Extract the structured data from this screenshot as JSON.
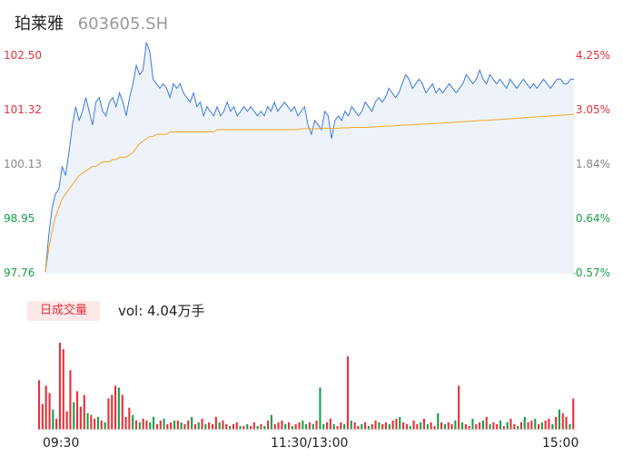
{
  "header": {
    "name": "珀莱雅",
    "code": "603605.SH"
  },
  "chart_data": {
    "type": "line",
    "price_axis": [
      "102.50",
      "101.32",
      "100.13",
      "98.95",
      "97.76"
    ],
    "pct_axis": [
      "4.25%",
      "3.05%",
      "1.84%",
      "0.64%",
      "-0.57%"
    ],
    "ylim": [
      97.76,
      102.5
    ],
    "x_ticks": [
      "09:30",
      "11:30/13:00",
      "15:00"
    ],
    "colors": {
      "price": "#3a7be0",
      "avg": "#f5a623",
      "up": "#e8303a",
      "down": "#15a04a"
    },
    "series": [
      {
        "values": [
          97.8,
          98.6,
          99.2,
          99.5,
          99.6,
          100.1,
          99.9,
          100.4,
          101.0,
          101.4,
          101.1,
          101.3,
          101.6,
          101.3,
          101.0,
          101.5,
          101.6,
          101.3,
          101.2,
          101.5,
          101.6,
          101.4,
          101.7,
          101.5,
          101.2,
          101.6,
          101.9,
          102.3,
          102.1,
          102.2,
          102.8,
          102.6,
          102.0,
          101.9,
          101.8,
          101.9,
          101.8,
          101.6,
          101.9,
          101.8,
          101.9,
          101.7,
          101.6,
          101.5,
          101.7,
          101.4,
          101.5,
          101.2,
          101.4,
          101.3,
          101.2,
          101.4,
          101.2,
          101.3,
          101.5,
          101.3,
          101.4,
          101.2,
          101.3,
          101.4,
          101.3,
          101.4,
          101.3,
          101.2,
          101.3,
          101.2,
          101.4,
          101.3,
          101.5,
          101.3,
          101.4,
          101.5,
          101.4,
          101.3,
          101.4,
          101.2,
          101.3,
          101.4,
          101.0,
          100.8,
          101.1,
          101.0,
          100.9,
          101.3,
          101.2,
          100.7,
          101.1,
          101.2,
          101.1,
          101.3,
          101.2,
          101.4,
          101.3,
          101.2,
          101.3,
          101.5,
          101.4,
          101.3,
          101.5,
          101.6,
          101.5,
          101.6,
          101.8,
          101.7,
          101.6,
          101.7,
          101.9,
          102.1,
          102.0,
          101.8,
          101.9,
          102.0,
          101.9,
          101.7,
          101.8,
          101.9,
          101.7,
          101.8,
          101.7,
          101.8,
          101.9,
          101.8,
          101.7,
          101.8,
          101.9,
          102.1,
          102.0,
          101.9,
          102.0,
          102.2,
          102.0,
          101.9,
          102.1,
          102.0,
          101.9,
          102.0,
          101.9,
          101.8,
          102.0,
          101.9,
          101.8,
          101.9,
          102.0,
          101.9,
          101.8,
          101.9,
          101.8,
          101.9,
          102.0,
          101.9,
          101.8,
          101.9,
          102.0,
          102.0,
          101.9,
          101.9,
          102.0,
          102.0
        ]
      },
      {
        "values": [
          97.8,
          98.3,
          98.7,
          99.0,
          99.2,
          99.4,
          99.5,
          99.6,
          99.7,
          99.8,
          99.9,
          99.95,
          100.0,
          100.05,
          100.1,
          100.1,
          100.15,
          100.2,
          100.2,
          100.2,
          100.25,
          100.25,
          100.3,
          100.3,
          100.3,
          100.35,
          100.4,
          100.5,
          100.6,
          100.65,
          100.7,
          100.75,
          100.75,
          100.8,
          100.8,
          100.8,
          100.8,
          100.85,
          100.85,
          100.85,
          100.85,
          100.85,
          100.85,
          100.85,
          100.85,
          100.85,
          100.85,
          100.85,
          100.85,
          100.85,
          100.85,
          100.9,
          100.9,
          100.9,
          100.9,
          100.9,
          100.9,
          100.9,
          100.9,
          100.9,
          100.9,
          100.9,
          100.9,
          100.9,
          100.9,
          100.9,
          100.9,
          100.9,
          100.9,
          100.9,
          100.9,
          100.9,
          100.9,
          100.9,
          100.9,
          100.9,
          100.92,
          100.92,
          100.92,
          100.92,
          100.92,
          100.92,
          100.92,
          100.93,
          100.93,
          100.93,
          100.93,
          100.93,
          100.94,
          100.94,
          100.94,
          100.95,
          100.95,
          100.95,
          100.95,
          100.95,
          100.95,
          100.96,
          100.96,
          100.97,
          100.97,
          100.98,
          100.98,
          100.98,
          100.99,
          100.99,
          101.0,
          101.0,
          101.0,
          101.01,
          101.01,
          101.02,
          101.02,
          101.02,
          101.03,
          101.03,
          101.03,
          101.04,
          101.04,
          101.05,
          101.05,
          101.06,
          101.06,
          101.07,
          101.07,
          101.08,
          101.08,
          101.09,
          101.09,
          101.1,
          101.1,
          101.1,
          101.11,
          101.11,
          101.12,
          101.12,
          101.13,
          101.13,
          101.14,
          101.14,
          101.15,
          101.15,
          101.16,
          101.16,
          101.17,
          101.17,
          101.18,
          101.18,
          101.19,
          101.19,
          101.2,
          101.2,
          101.21,
          101.21,
          101.22,
          101.22,
          101.23,
          101.24
        ]
      }
    ],
    "volume": {
      "label": "日成交量",
      "summary": "vol: 4.04万手",
      "bars": [
        54,
        28,
        48,
        40,
        22,
        12,
        95,
        88,
        20,
        65,
        30,
        42,
        25,
        38,
        18,
        16,
        12,
        14,
        10,
        8,
        34,
        38,
        48,
        46,
        38,
        14,
        24,
        16,
        10,
        8,
        12,
        10,
        8,
        14,
        6,
        10,
        12,
        6,
        8,
        10,
        10,
        8,
        6,
        10,
        14,
        6,
        8,
        12,
        6,
        8,
        6,
        14,
        8,
        10,
        6,
        4,
        6,
        8,
        4,
        4,
        6,
        4,
        8,
        4,
        6,
        4,
        10,
        16,
        6,
        8,
        10,
        6,
        8,
        4,
        6,
        8,
        10,
        6,
        8,
        6,
        10,
        46,
        6,
        8,
        12,
        6,
        4,
        8,
        6,
        80,
        10,
        8,
        4,
        6,
        8,
        4,
        6,
        10,
        8,
        6,
        8,
        6,
        10,
        12,
        14,
        8,
        6,
        4,
        10,
        6,
        8,
        12,
        6,
        8,
        4,
        18,
        8,
        6,
        8,
        6,
        10,
        48,
        8,
        6,
        4,
        12,
        6,
        8,
        10,
        14,
        6,
        8,
        6,
        10,
        4,
        8,
        12,
        6,
        4,
        8,
        14,
        8,
        10,
        12,
        6,
        8,
        10,
        12,
        6,
        14,
        22,
        18,
        14,
        6,
        34
      ],
      "directions": [
        "u",
        "u",
        "u",
        "u",
        "d",
        "u",
        "u",
        "u",
        "u",
        "u",
        "d",
        "u",
        "u",
        "u",
        "d",
        "u",
        "u",
        "d",
        "u",
        "d",
        "u",
        "u",
        "u",
        "d",
        "u",
        "u",
        "u",
        "d",
        "u",
        "d",
        "u",
        "u",
        "d",
        "d",
        "u",
        "u",
        "d",
        "u",
        "u",
        "d",
        "u",
        "d",
        "u",
        "u",
        "d",
        "u",
        "d",
        "u",
        "d",
        "u",
        "u",
        "u",
        "d",
        "u",
        "u",
        "d",
        "u",
        "u",
        "d",
        "u",
        "d",
        "u",
        "u",
        "d",
        "u",
        "d",
        "u",
        "d",
        "u",
        "u",
        "u",
        "d",
        "u",
        "d",
        "u",
        "u",
        "d",
        "d",
        "u",
        "d",
        "u",
        "d",
        "d",
        "u",
        "u",
        "d",
        "u",
        "u",
        "d",
        "u",
        "d",
        "u",
        "u",
        "d",
        "u",
        "d",
        "u",
        "u",
        "d",
        "u",
        "u",
        "d",
        "u",
        "u",
        "d",
        "u",
        "u",
        "d",
        "u",
        "u",
        "d",
        "u",
        "d",
        "u",
        "u",
        "d",
        "u",
        "d",
        "u",
        "u",
        "d",
        "u",
        "d",
        "u",
        "u",
        "d",
        "u",
        "u",
        "d",
        "u",
        "d",
        "u",
        "u",
        "d",
        "u",
        "d",
        "u",
        "u",
        "d",
        "u",
        "d",
        "u",
        "u",
        "d",
        "u",
        "d",
        "u",
        "u",
        "d",
        "u",
        "d",
        "u",
        "u",
        "d",
        "u"
      ]
    }
  }
}
